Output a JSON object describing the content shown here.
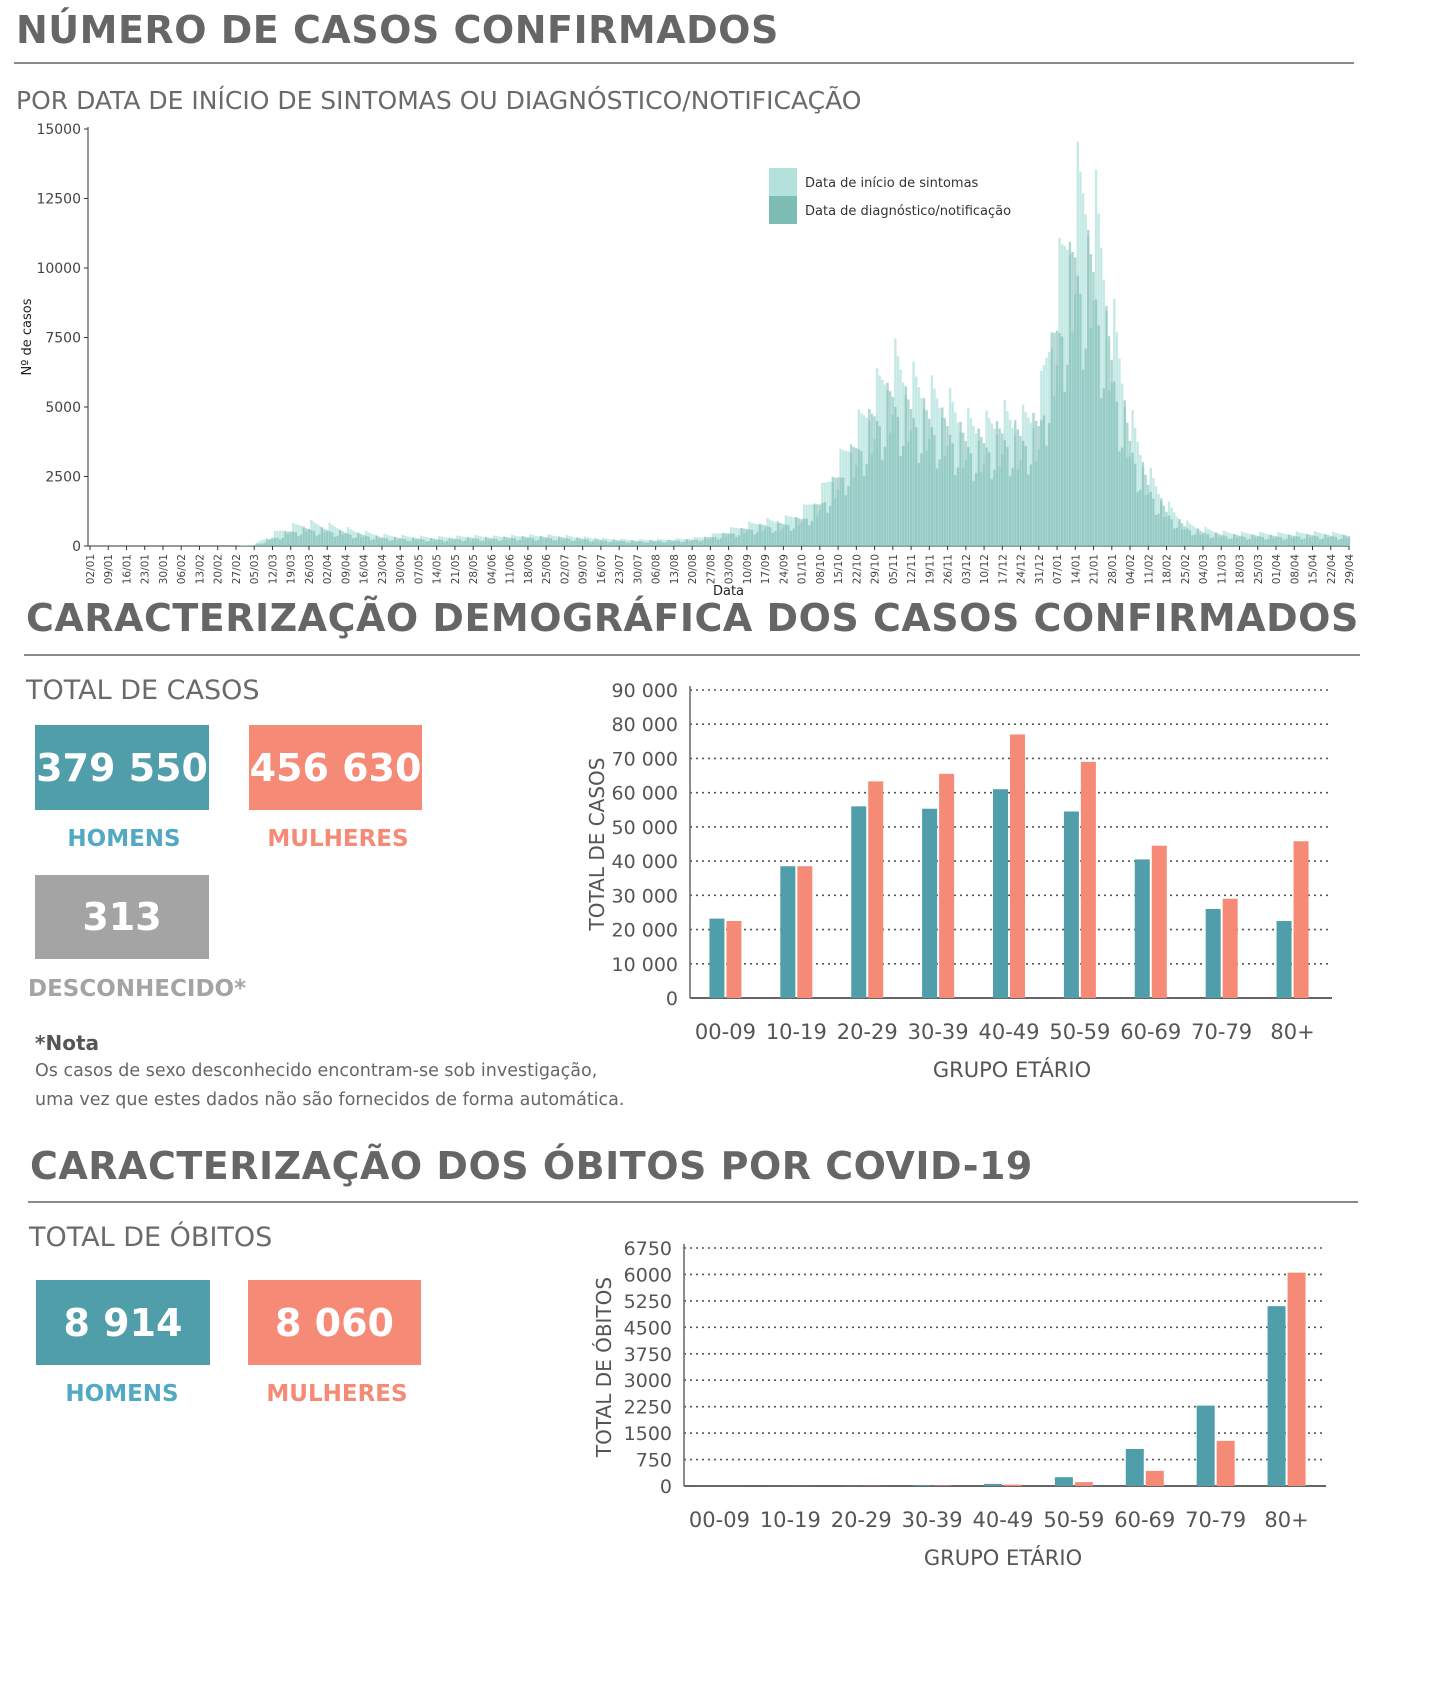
{
  "sections": {
    "confirmed_title": "NÚMERO DE CASOS CONFIRMADOS",
    "confirmed_subtitle": "POR DATA DE INÍCIO DE SINTOMAS OU DIAGNÓSTICO/NOTIFICAÇÃO",
    "demographic_title": "CARACTERIZAÇÃO DEMOGRÁFICA DOS CASOS CONFIRMADOS",
    "total_cases_label": "TOTAL DE CASOS",
    "deaths_title": "CARACTERIZAÇÃO DOS ÓBITOS POR COVID-19",
    "total_deaths_label": "TOTAL DE ÓBITOS"
  },
  "cases_tiles": {
    "men_value": "379 550",
    "men_label": "HOMENS",
    "women_value": "456 630",
    "women_label": "MULHERES",
    "unknown_value": "313",
    "unknown_label": "DESCONHECIDO*"
  },
  "note": {
    "title": "*Nota",
    "line1": "Os casos de sexo desconhecido encontram-se sob investigação,",
    "line2": "uma vez que estes dados não são fornecidos de forma automática."
  },
  "deaths_tiles": {
    "men_value": "8 914",
    "men_label": "HOMENS",
    "women_value": "8 060",
    "women_label": "MULHERES"
  },
  "colors": {
    "men": "#4f9eaa",
    "women": "#f58a76",
    "unknown": "#a4a4a4",
    "symptoms": "#a6ddd6",
    "diagnosis": "#6fb5ac"
  },
  "chart_data": [
    {
      "type": "bar",
      "xlabel": "Data",
      "ylabel": "Nº de casos",
      "ylim": [
        0,
        15000
      ],
      "yticks": [
        0,
        2500,
        5000,
        7500,
        10000,
        12500,
        15000
      ],
      "legend_position": "top-right",
      "x_tick_labels": [
        "02/01",
        "09/01",
        "16/01",
        "23/01",
        "30/01",
        "06/02",
        "13/02",
        "20/02",
        "27/02",
        "05/03",
        "12/03",
        "19/03",
        "26/03",
        "02/04",
        "09/04",
        "16/04",
        "23/04",
        "30/04",
        "07/05",
        "14/05",
        "21/05",
        "28/05",
        "04/06",
        "11/06",
        "18/06",
        "25/06",
        "02/07",
        "09/07",
        "16/07",
        "23/07",
        "30/07",
        "06/08",
        "13/08",
        "20/08",
        "27/08",
        "03/09",
        "10/09",
        "17/09",
        "24/09",
        "01/10",
        "08/10",
        "15/10",
        "22/10",
        "29/10",
        "05/11",
        "12/11",
        "19/11",
        "26/11",
        "03/12",
        "10/12",
        "17/12",
        "24/12",
        "31/12",
        "07/01",
        "14/01",
        "21/01",
        "28/01",
        "04/02",
        "11/02",
        "18/02",
        "25/02",
        "04/03",
        "11/03",
        "18/03",
        "25/03",
        "01/04",
        "08/04",
        "15/04",
        "22/04",
        "29/04"
      ],
      "series": [
        {
          "name": "Data de início de sintomas",
          "values_weekly_peak": [
            0,
            0,
            0,
            0,
            0,
            0,
            0,
            0,
            0,
            50,
            500,
            800,
            950,
            850,
            700,
            550,
            450,
            400,
            380,
            350,
            380,
            400,
            380,
            400,
            420,
            430,
            400,
            350,
            300,
            270,
            250,
            260,
            270,
            300,
            420,
            650,
            850,
            1000,
            1050,
            1400,
            2100,
            3300,
            4700,
            6200,
            7600,
            6700,
            6200,
            5800,
            5000,
            4800,
            5300,
            5000,
            5600,
            10500,
            14600,
            14200,
            9500,
            5200,
            3000,
            1700,
            950,
            700,
            560,
            520,
            520,
            500,
            520,
            540,
            520,
            500
          ]
        },
        {
          "name": "Data de diagnóstico/notificação",
          "values_weekly_peak": [
            0,
            0,
            0,
            0,
            0,
            0,
            0,
            0,
            0,
            30,
            300,
            600,
            700,
            650,
            550,
            450,
            350,
            320,
            300,
            280,
            300,
            330,
            320,
            350,
            360,
            360,
            340,
            300,
            260,
            230,
            210,
            220,
            230,
            260,
            360,
            520,
            700,
            850,
            900,
            1100,
            1700,
            2800,
            4000,
            5300,
            6100,
            5600,
            5200,
            4900,
            4300,
            4200,
            4600,
            4500,
            4900,
            8800,
            11800,
            11200,
            7600,
            4300,
            2500,
            1400,
            800,
            560,
            460,
            420,
            420,
            400,
            420,
            440,
            420,
            400
          ]
        }
      ]
    },
    {
      "type": "bar",
      "xlabel": "GRUPO ETÁRIO",
      "ylabel": "TOTAL DE CASOS",
      "ylim": [
        0,
        90000
      ],
      "yticks": [
        0,
        10000,
        20000,
        30000,
        40000,
        50000,
        60000,
        70000,
        80000,
        90000
      ],
      "ytick_labels": [
        "0",
        "10 000",
        "20 000",
        "30 000",
        "40 000",
        "50 000",
        "60 000",
        "70 000",
        "80 000",
        "90 000"
      ],
      "categories": [
        "00-09",
        "10-19",
        "20-29",
        "30-39",
        "40-49",
        "50-59",
        "60-69",
        "70-79",
        "80+"
      ],
      "series": [
        {
          "name": "Homens",
          "values": [
            23200,
            38500,
            56000,
            55300,
            61000,
            54500,
            40500,
            26000,
            22500
          ]
        },
        {
          "name": "Mulheres",
          "values": [
            22500,
            38500,
            63300,
            65500,
            77000,
            69000,
            44500,
            29000,
            45800
          ]
        }
      ]
    },
    {
      "type": "bar",
      "xlabel": "GRUPO ETÁRIO",
      "ylabel": "TOTAL DE ÓBITOS",
      "ylim": [
        0,
        6750
      ],
      "yticks": [
        0,
        750,
        1500,
        2250,
        3000,
        3750,
        4500,
        5250,
        6000,
        6750
      ],
      "categories": [
        "00-09",
        "10-19",
        "20-29",
        "30-39",
        "40-49",
        "50-59",
        "60-69",
        "70-79",
        "80+"
      ],
      "series": [
        {
          "name": "Homens",
          "values": [
            3,
            5,
            10,
            25,
            60,
            250,
            1050,
            2280,
            5100
          ]
        },
        {
          "name": "Mulheres",
          "values": [
            2,
            3,
            8,
            15,
            40,
            110,
            430,
            1280,
            6050
          ]
        }
      ]
    }
  ]
}
